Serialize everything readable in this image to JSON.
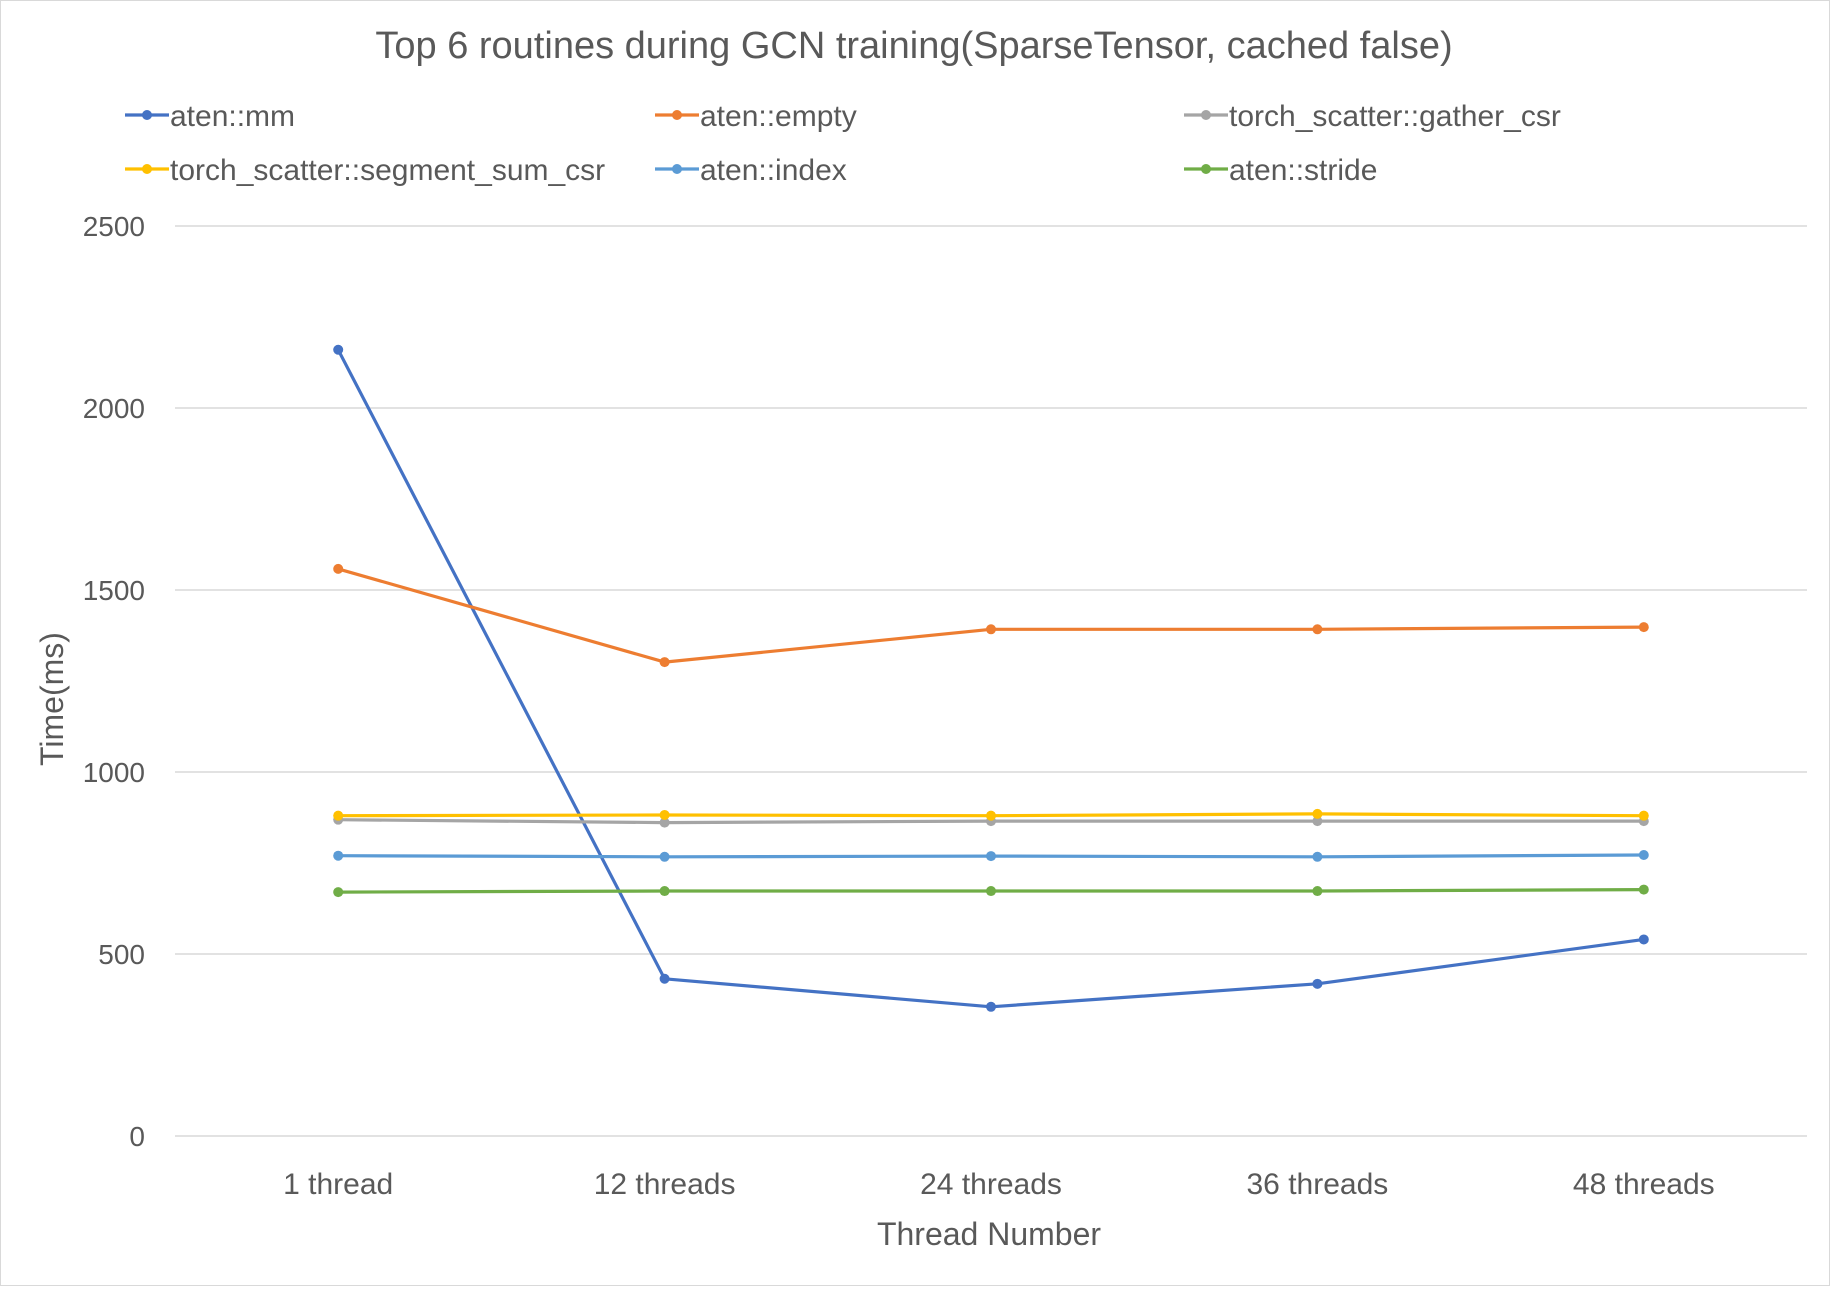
{
  "chart_data": {
    "type": "line",
    "title": "Top 6 routines during GCN training(SparseTensor, cached false)",
    "xlabel": "Thread Number",
    "ylabel": "Time(ms)",
    "categories": [
      "1 thread",
      "12 threads",
      "24 threads",
      "36 threads",
      "48 threads"
    ],
    "ylim": [
      0,
      2500
    ],
    "yticks": [
      0,
      500,
      1000,
      1500,
      2000,
      2500
    ],
    "grid": "horizontal",
    "legend_position": "top",
    "series": [
      {
        "name": "aten::mm",
        "color": "#4472c4",
        "values": [
          2160,
          432,
          355,
          418,
          540
        ]
      },
      {
        "name": "aten::empty",
        "color": "#ed7d31",
        "values": [
          1558,
          1302,
          1392,
          1392,
          1398
        ]
      },
      {
        "name": "torch_scatter::gather_csr",
        "color": "#a5a5a5",
        "values": [
          869,
          861,
          865,
          865,
          865
        ]
      },
      {
        "name": "torch_scatter::segment_sum_csr",
        "color": "#ffc000",
        "values": [
          880,
          882,
          880,
          885,
          880
        ]
      },
      {
        "name": "aten::index",
        "color": "#5b9bd5",
        "values": [
          770,
          767,
          769,
          767,
          772
        ]
      },
      {
        "name": "aten::stride",
        "color": "#70ad47",
        "values": [
          670,
          673,
          673,
          673,
          677
        ]
      }
    ]
  }
}
